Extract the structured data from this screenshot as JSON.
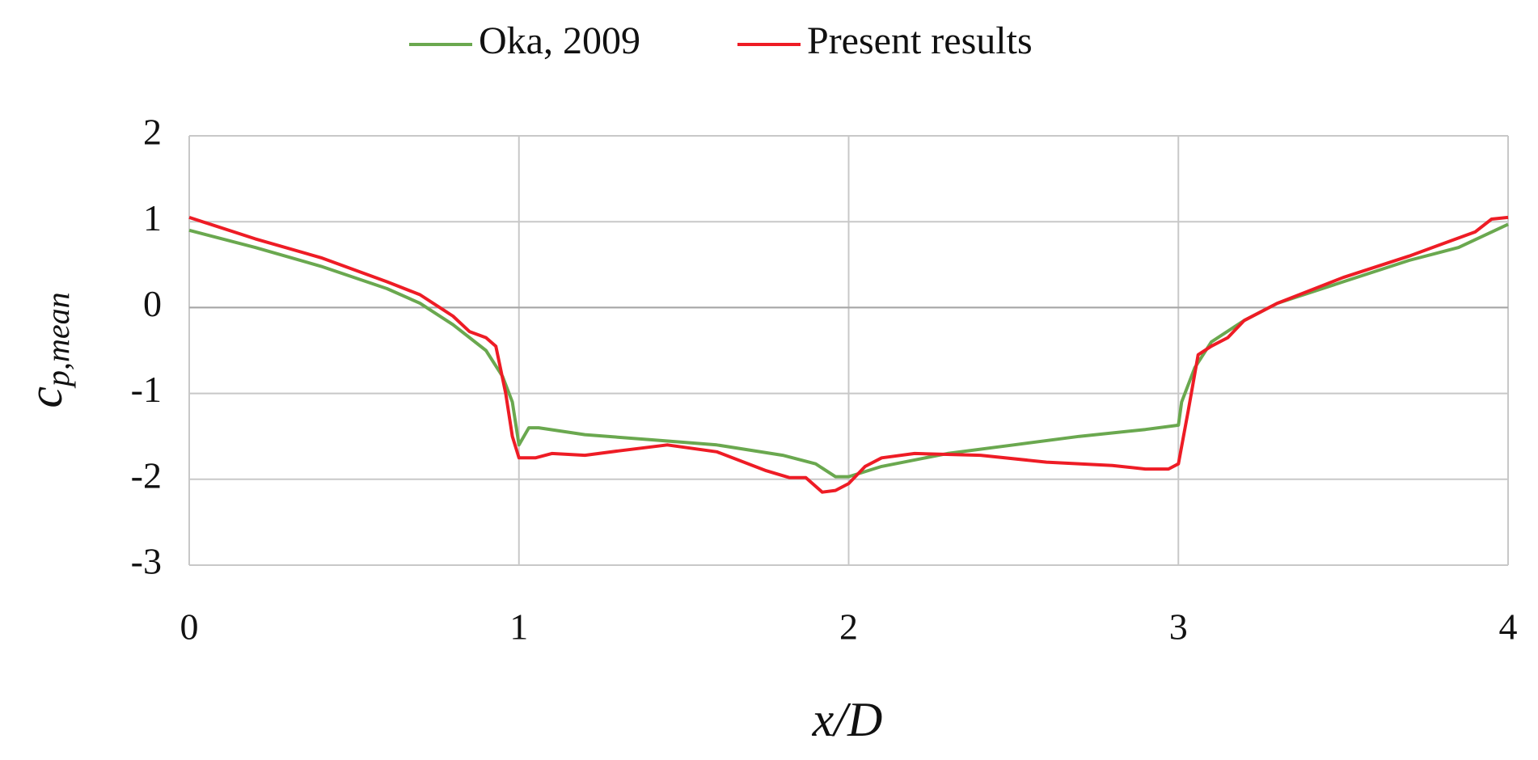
{
  "chart_data": {
    "type": "line",
    "x_label": "x/D",
    "y_label": "c",
    "y_label_sub": "p,mean",
    "xlim": [
      0,
      4
    ],
    "xticks": [
      0,
      1,
      2,
      3,
      4
    ],
    "ylim": [
      -3,
      2
    ],
    "yticks": [
      -3,
      -2,
      -1,
      0,
      1,
      2
    ],
    "grid": true,
    "legend": "top",
    "series": [
      {
        "name": "Oka, 2009",
        "color": "#6aa84f",
        "x": [
          0,
          0.2,
          0.4,
          0.6,
          0.7,
          0.8,
          0.9,
          0.95,
          0.98,
          1.0,
          1.03,
          1.06,
          1.2,
          1.4,
          1.6,
          1.8,
          1.9,
          1.96,
          2.0,
          2.1,
          2.3,
          2.5,
          2.7,
          2.9,
          3.0,
          3.01,
          3.05,
          3.1,
          3.2,
          3.3,
          3.5,
          3.7,
          3.85,
          4.0
        ],
        "values": [
          0.9,
          0.7,
          0.48,
          0.22,
          0.05,
          -0.2,
          -0.5,
          -0.8,
          -1.1,
          -1.6,
          -1.4,
          -1.4,
          -1.48,
          -1.54,
          -1.6,
          -1.72,
          -1.82,
          -1.97,
          -1.97,
          -1.85,
          -1.7,
          -1.6,
          -1.5,
          -1.42,
          -1.37,
          -1.1,
          -0.7,
          -0.4,
          -0.15,
          0.05,
          0.3,
          0.55,
          0.7,
          0.97
        ]
      },
      {
        "name": "Present results",
        "color": "#ee1c25",
        "x": [
          0,
          0.2,
          0.4,
          0.6,
          0.7,
          0.8,
          0.85,
          0.9,
          0.93,
          0.96,
          0.98,
          1.0,
          1.05,
          1.1,
          1.2,
          1.3,
          1.45,
          1.6,
          1.75,
          1.82,
          1.87,
          1.92,
          1.96,
          2.0,
          2.05,
          2.1,
          2.2,
          2.4,
          2.6,
          2.8,
          2.9,
          2.97,
          3.0,
          3.03,
          3.06,
          3.1,
          3.15,
          3.2,
          3.3,
          3.5,
          3.7,
          3.9,
          3.95,
          4.0
        ],
        "values": [
          1.05,
          0.8,
          0.58,
          0.3,
          0.15,
          -0.1,
          -0.28,
          -0.35,
          -0.45,
          -1.0,
          -1.5,
          -1.75,
          -1.75,
          -1.7,
          -1.72,
          -1.67,
          -1.6,
          -1.68,
          -1.9,
          -1.98,
          -1.98,
          -2.15,
          -2.13,
          -2.05,
          -1.85,
          -1.75,
          -1.7,
          -1.72,
          -1.8,
          -1.84,
          -1.88,
          -1.88,
          -1.82,
          -1.2,
          -0.55,
          -0.45,
          -0.35,
          -0.15,
          0.05,
          0.35,
          0.6,
          0.88,
          1.03,
          1.05
        ]
      }
    ]
  }
}
